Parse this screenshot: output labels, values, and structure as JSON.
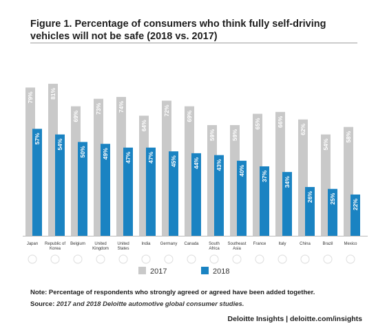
{
  "title": "Figure 1. Percentage of consumers who think fully self-driving vehicles will not be safe (2018 vs. 2017)",
  "note": "Note: Percentage of respondents who strongly agreed or agreed have been added together.",
  "source_label": "Source:",
  "source_text": "2017 and 2018 Deloitte automotive global consumer studies.",
  "footer": "Deloitte Insights | deloitte.com/insights",
  "colors": {
    "series_2017": "#c9c9c9",
    "series_2018": "#1a83c2",
    "axis": "#bbbbbb"
  },
  "chart_data": {
    "type": "bar",
    "title": "Figure 1. Percentage of consumers who think fully self-driving vehicles will not be safe (2018 vs. 2017)",
    "xlabel": "",
    "ylabel": "",
    "ylim": [
      0,
      100
    ],
    "grid": false,
    "legend": "bottom",
    "categories": [
      "Japan",
      "Republic of Korea",
      "Belgium",
      "United Kingdom",
      "United States",
      "India",
      "Germany",
      "Canada",
      "South Africa",
      "Southeast Asia",
      "France",
      "Italy",
      "China",
      "Brazil",
      "Mexico"
    ],
    "series": [
      {
        "name": "2017",
        "values": [
          79,
          81,
          69,
          73,
          74,
          64,
          72,
          69,
          59,
          59,
          65,
          66,
          62,
          54,
          58
        ],
        "labels": [
          "79%",
          "81%",
          "69%",
          "73%",
          "74%",
          "64%",
          "72%",
          "69%",
          "59%",
          "59%",
          "65%",
          "66%",
          "62%",
          "54%",
          "58%"
        ]
      },
      {
        "name": "2018",
        "values": [
          57,
          54,
          50,
          49,
          47,
          47,
          45,
          44,
          43,
          40,
          37,
          34,
          26,
          25,
          22
        ],
        "labels": [
          "57%",
          "54%",
          "50%",
          "49%",
          "47%",
          "47%",
          "45%",
          "44%",
          "43%",
          "40%",
          "37%",
          "34%",
          "26%",
          "25%",
          "22%"
        ]
      }
    ]
  }
}
